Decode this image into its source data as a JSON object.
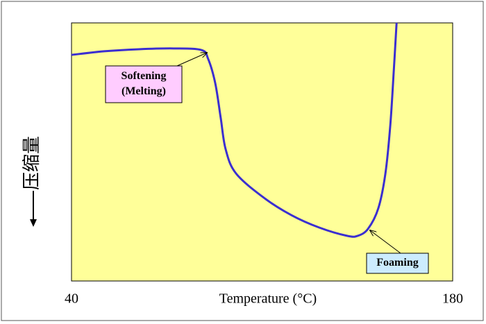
{
  "chart_data": {
    "type": "line",
    "x_label": "Temperature (°C)",
    "y_label": "压缩量",
    "x": [
      40,
      52,
      64.7,
      77.5,
      87.7,
      90.2,
      92.8,
      94.8,
      96.6,
      100.4,
      110.6,
      120.8,
      131,
      141.2,
      145.1,
      148.9,
      152.7,
      155.3,
      157.1,
      158.4,
      159.4
    ],
    "values": [
      87.6,
      89,
      89.8,
      90.1,
      89.5,
      86,
      76.6,
      63.2,
      51.1,
      41.7,
      32.3,
      25.5,
      20.7,
      17.5,
      17.5,
      20.2,
      28.2,
      41.7,
      60.5,
      82,
      100
    ],
    "color": "#3b2fd0",
    "background": "#ffff99",
    "xlim": [
      40,
      180
    ],
    "xticks": [
      40,
      180
    ],
    "ylim": [
      0,
      100
    ],
    "annotations": [
      {
        "text": [
          "Softening",
          "(Melting)"
        ],
        "color": "#ffccff"
      },
      {
        "text": [
          "Foaming"
        ],
        "color": "#ccecff"
      }
    ]
  }
}
